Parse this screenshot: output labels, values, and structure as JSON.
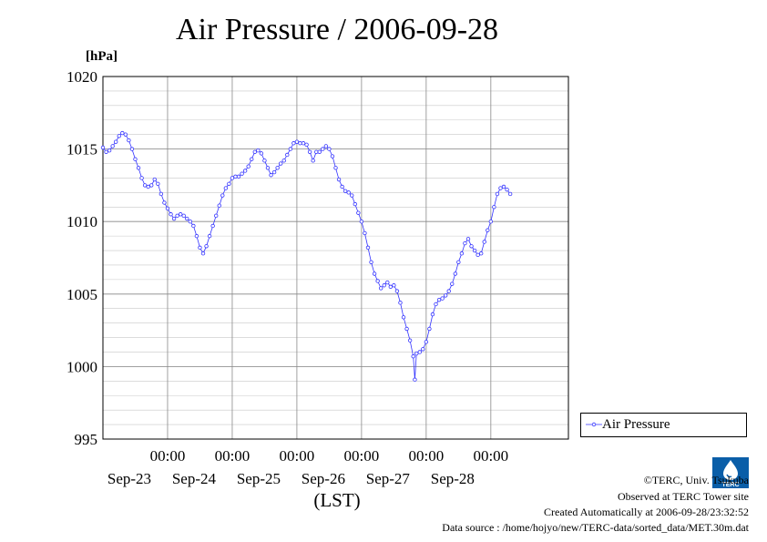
{
  "chart_data": {
    "type": "line",
    "title": "Air Pressure / 2006-09-28",
    "ylabel": "[hPa]",
    "xlabel": "(LST)",
    "ylim": [
      995,
      1020
    ],
    "xlim": [
      0,
      144
    ],
    "yticks": [
      995,
      1000,
      1005,
      1010,
      1015,
      1020
    ],
    "xticks": [
      {
        "x": 20,
        "time": "00:00",
        "date": "Sep-23"
      },
      {
        "x": 40,
        "time": "00:00",
        "date": "Sep-24"
      },
      {
        "x": 60,
        "time": "00:00",
        "date": "Sep-25"
      },
      {
        "x": 80,
        "time": "00:00",
        "date": "Sep-26"
      },
      {
        "x": 100,
        "time": "00:00",
        "date": "Sep-27"
      },
      {
        "x": 120,
        "time": "00:00",
        "date": "Sep-28"
      }
    ],
    "x_unit": "hours after 2006-09-22 04:00",
    "grid": true,
    "legend": "right",
    "series": [
      {
        "name": "Air Pressure",
        "color": "#3333ff",
        "marker": "circle",
        "points": [
          [
            0,
            1015.1
          ],
          [
            1,
            1014.8
          ],
          [
            2,
            1014.9
          ],
          [
            3,
            1015.2
          ],
          [
            4,
            1015.5
          ],
          [
            5,
            1015.9
          ],
          [
            6,
            1016.1
          ],
          [
            7,
            1016.0
          ],
          [
            8,
            1015.6
          ],
          [
            9,
            1015.0
          ],
          [
            10,
            1014.3
          ],
          [
            11,
            1013.7
          ],
          [
            12,
            1013.0
          ],
          [
            13,
            1012.5
          ],
          [
            14,
            1012.4
          ],
          [
            15,
            1012.5
          ],
          [
            16,
            1012.9
          ],
          [
            17,
            1012.6
          ],
          [
            18,
            1011.9
          ],
          [
            19,
            1011.3
          ],
          [
            20,
            1010.9
          ],
          [
            21,
            1010.5
          ],
          [
            22,
            1010.2
          ],
          [
            23,
            1010.4
          ],
          [
            24,
            1010.5
          ],
          [
            25,
            1010.4
          ],
          [
            26,
            1010.2
          ],
          [
            27,
            1010.0
          ],
          [
            28,
            1009.7
          ],
          [
            29,
            1009.0
          ],
          [
            30,
            1008.2
          ],
          [
            31,
            1007.8
          ],
          [
            32,
            1008.3
          ],
          [
            33,
            1009.0
          ],
          [
            34,
            1009.7
          ],
          [
            35,
            1010.4
          ],
          [
            36,
            1011.1
          ],
          [
            37,
            1011.8
          ],
          [
            38,
            1012.3
          ],
          [
            39,
            1012.6
          ],
          [
            40,
            1013.0
          ],
          [
            41,
            1013.1
          ],
          [
            42,
            1013.1
          ],
          [
            43,
            1013.3
          ],
          [
            44,
            1013.5
          ],
          [
            45,
            1013.8
          ],
          [
            46,
            1014.3
          ],
          [
            47,
            1014.8
          ],
          [
            48,
            1014.9
          ],
          [
            49,
            1014.7
          ],
          [
            50,
            1014.2
          ],
          [
            51,
            1013.7
          ],
          [
            52,
            1013.2
          ],
          [
            53,
            1013.4
          ],
          [
            54,
            1013.7
          ],
          [
            55,
            1014.0
          ],
          [
            56,
            1014.2
          ],
          [
            57,
            1014.6
          ],
          [
            58,
            1015.0
          ],
          [
            59,
            1015.4
          ],
          [
            60,
            1015.5
          ],
          [
            61,
            1015.4
          ],
          [
            62,
            1015.4
          ],
          [
            63,
            1015.3
          ],
          [
            64,
            1014.8
          ],
          [
            65,
            1014.2
          ],
          [
            66,
            1014.8
          ],
          [
            67,
            1014.8
          ],
          [
            68,
            1015.0
          ],
          [
            69,
            1015.2
          ],
          [
            70,
            1015.0
          ],
          [
            71,
            1014.5
          ],
          [
            72,
            1013.7
          ],
          [
            73,
            1012.9
          ],
          [
            74,
            1012.4
          ],
          [
            75,
            1012.1
          ],
          [
            76,
            1012.0
          ],
          [
            77,
            1011.8
          ],
          [
            78,
            1011.2
          ],
          [
            79,
            1010.6
          ],
          [
            80,
            1010.0
          ],
          [
            81,
            1009.2
          ],
          [
            82,
            1008.2
          ],
          [
            83,
            1007.2
          ],
          [
            84,
            1006.4
          ],
          [
            85,
            1005.9
          ],
          [
            86,
            1005.4
          ],
          [
            87,
            1005.6
          ],
          [
            88,
            1005.8
          ],
          [
            89,
            1005.5
          ],
          [
            90,
            1005.6
          ],
          [
            91,
            1005.2
          ],
          [
            92,
            1004.4
          ],
          [
            93,
            1003.4
          ],
          [
            94,
            1002.6
          ],
          [
            95,
            1001.8
          ],
          [
            96,
            1000.7
          ],
          [
            96.5,
            999.1
          ],
          [
            97,
            1000.9
          ],
          [
            98,
            1001.0
          ],
          [
            99,
            1001.2
          ],
          [
            100,
            1001.7
          ],
          [
            101,
            1002.6
          ],
          [
            102,
            1003.6
          ],
          [
            103,
            1004.3
          ],
          [
            104,
            1004.6
          ],
          [
            105,
            1004.7
          ],
          [
            106,
            1004.9
          ],
          [
            107,
            1005.2
          ],
          [
            108,
            1005.7
          ],
          [
            109,
            1006.4
          ],
          [
            110,
            1007.2
          ],
          [
            111,
            1007.8
          ],
          [
            112,
            1008.5
          ],
          [
            113,
            1008.8
          ],
          [
            114,
            1008.3
          ],
          [
            115,
            1008.0
          ],
          [
            116,
            1007.7
          ],
          [
            117,
            1007.8
          ],
          [
            118,
            1008.6
          ],
          [
            119,
            1009.4
          ],
          [
            120,
            1010.0
          ],
          [
            121,
            1011.0
          ],
          [
            122,
            1011.9
          ],
          [
            123,
            1012.3
          ],
          [
            124,
            1012.4
          ],
          [
            125,
            1012.2
          ],
          [
            126,
            1011.9
          ]
        ]
      }
    ]
  },
  "logo_text": "TERC",
  "credits": [
    "©TERC, Univ. Tsukuba",
    "Observed at TERC Tower site",
    "Created Automatically at 2006-09-28/23:32:52",
    "Data source : /home/hojyo/new/TERC-data/sorted_data/MET.30m.dat"
  ]
}
